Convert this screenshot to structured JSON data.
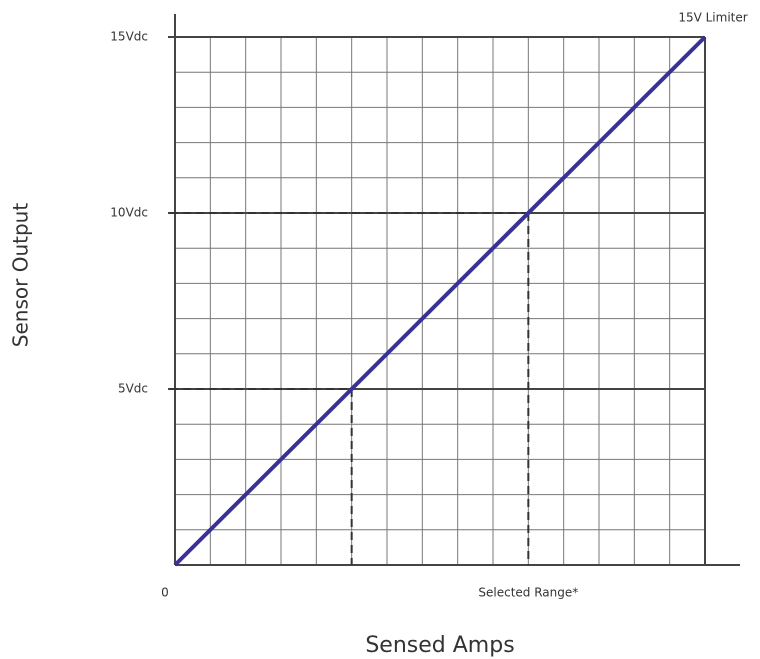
{
  "chart_data": {
    "type": "line",
    "x_label": "Sensed Amps",
    "y_label": "Sensor Output",
    "x": [
      0,
      15
    ],
    "series": [
      {
        "name": "Sensor Output",
        "color": "#3a3196",
        "values": [
          0,
          15
        ]
      }
    ],
    "xlim": [
      0,
      15
    ],
    "ylim": [
      0,
      15
    ],
    "xticks": [
      0,
      {
        "value": 10,
        "label": "Selected Range*"
      }
    ],
    "yticks": [
      {
        "value": 5,
        "label": "5Vdc"
      },
      {
        "value": 10,
        "label": "10Vdc"
      },
      {
        "value": 15,
        "label": "15Vdc"
      }
    ],
    "grid": true,
    "grid_step": 1,
    "guides": [
      {
        "x": 5,
        "y": 5
      },
      {
        "x": 10,
        "y": 10
      }
    ],
    "annotation": {
      "text": "15V Limiter",
      "x": 15,
      "y": 15
    }
  }
}
